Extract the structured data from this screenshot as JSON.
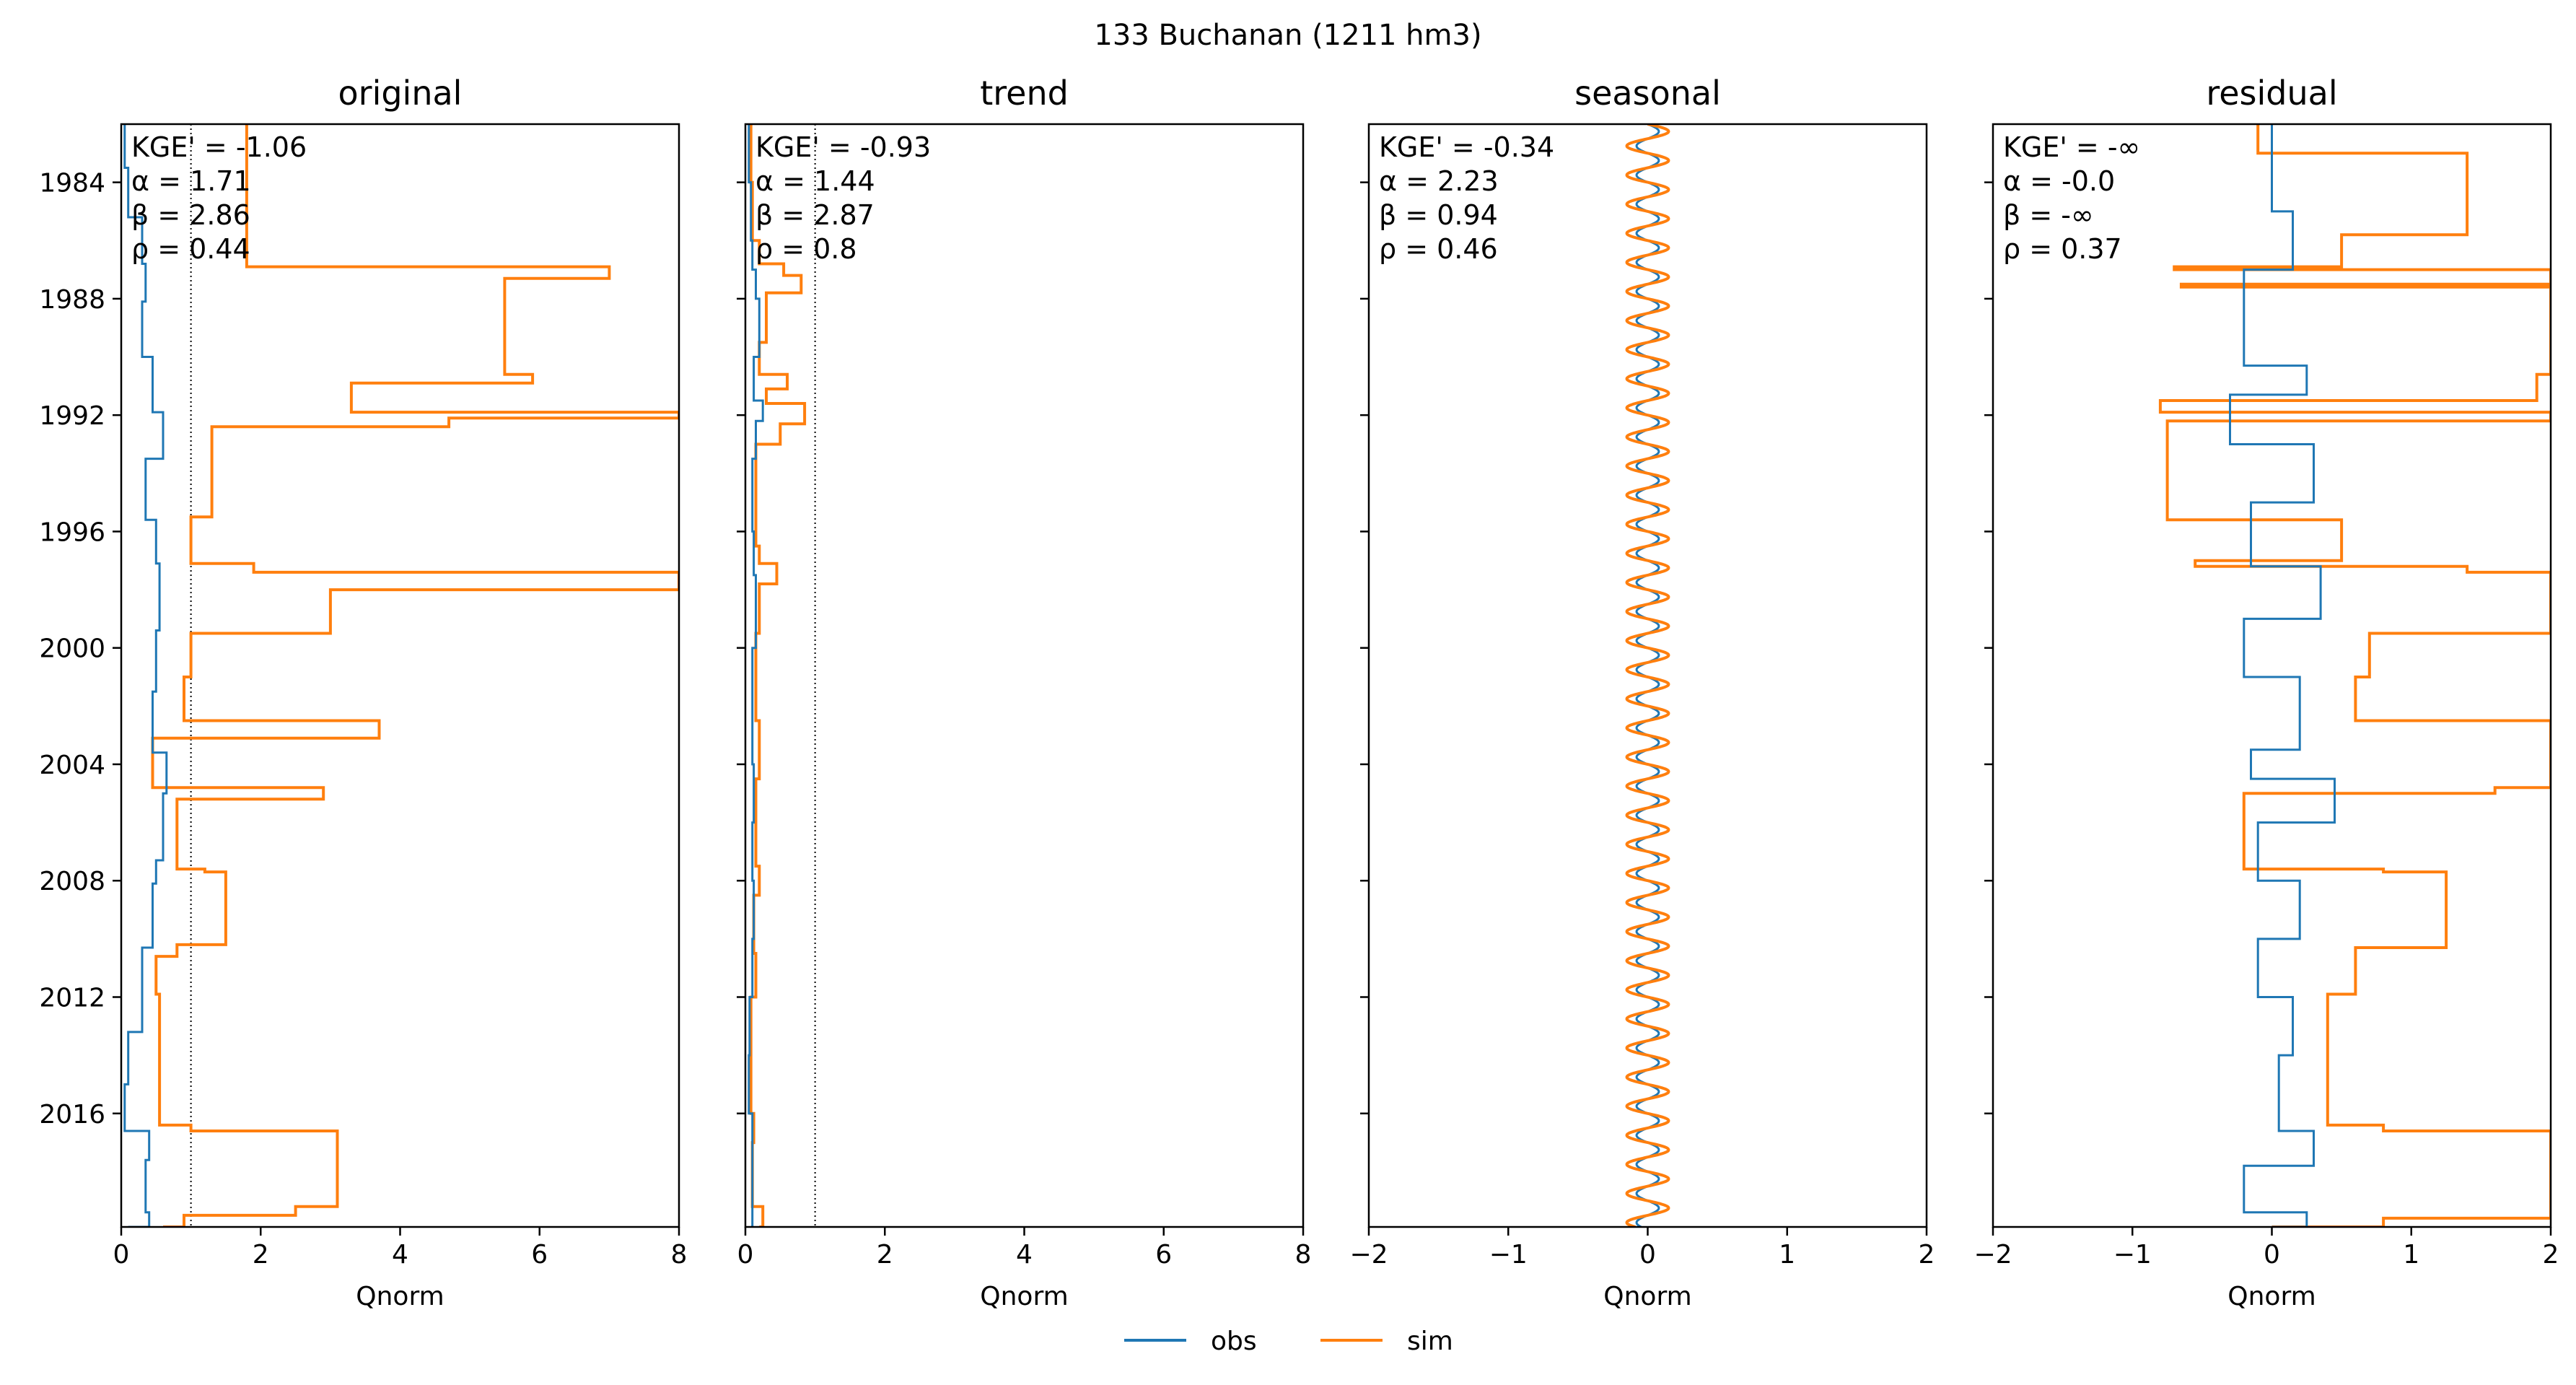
{
  "figure": {
    "suptitle": "133  Buchanan (1211 hm3)"
  },
  "colors": {
    "obs": "#1f77b4",
    "sim": "#ff7f0e",
    "axis": "#000000"
  },
  "chart_data": {
    "type": "line",
    "orientation": "horizontal (x = Qnorm, y = date)",
    "legend": {
      "placement": "bottom-center",
      "entries": [
        "obs",
        "sim"
      ]
    },
    "ylim": [
      1982.0,
      2019.9
    ],
    "yticks": [
      "1984",
      "1988",
      "1992",
      "1996",
      "2000",
      "2004",
      "2008",
      "2012",
      "2016"
    ],
    "panels": [
      {
        "title": "original",
        "xlabel": "Qnorm",
        "xlim": [
          0,
          8
        ],
        "xticks": [
          "0",
          "2",
          "4",
          "6",
          "8"
        ],
        "reference_line_x": 1,
        "show_ytick_labels": true,
        "metrics": [
          "KGE' = -1.06",
          "α = 1.71",
          "β = 2.86",
          "ρ = 0.44"
        ],
        "series": [
          {
            "name": "obs",
            "points": [
              [
                1982.0,
                0.05
              ],
              [
                1983.5,
                0.1
              ],
              [
                1985.2,
                0.3
              ],
              [
                1986.8,
                0.35
              ],
              [
                1988.1,
                0.3
              ],
              [
                1990.0,
                0.45
              ],
              [
                1991.9,
                0.6
              ],
              [
                1993.5,
                0.35
              ],
              [
                1995.6,
                0.5
              ],
              [
                1997.1,
                0.55
              ],
              [
                1999.4,
                0.5
              ],
              [
                2001.5,
                0.45
              ],
              [
                2003.6,
                0.65
              ],
              [
                2005.0,
                0.6
              ],
              [
                2007.3,
                0.5
              ],
              [
                2008.1,
                0.45
              ],
              [
                2010.3,
                0.3
              ],
              [
                2011.7,
                0.3
              ],
              [
                2013.2,
                0.1
              ],
              [
                2015.0,
                0.05
              ],
              [
                2016.6,
                0.4
              ],
              [
                2017.6,
                0.35
              ],
              [
                2019.4,
                0.4
              ],
              [
                2019.9,
                0.1
              ]
            ]
          },
          {
            "name": "sim",
            "points": [
              [
                1982.0,
                1.8
              ],
              [
                1986.9,
                7.0
              ],
              [
                1987.3,
                5.5
              ],
              [
                1990.6,
                5.9
              ],
              [
                1990.9,
                3.3
              ],
              [
                1991.9,
                8.0
              ],
              [
                1992.1,
                4.7
              ],
              [
                1992.4,
                1.3
              ],
              [
                1995.5,
                1.0
              ],
              [
                1997.1,
                1.9
              ],
              [
                1997.4,
                8.0
              ],
              [
                1998.0,
                3.0
              ],
              [
                1999.5,
                1.0
              ],
              [
                2001.0,
                0.9
              ],
              [
                2002.5,
                3.7
              ],
              [
                2003.1,
                0.45
              ],
              [
                2004.8,
                2.9
              ],
              [
                2005.2,
                0.8
              ],
              [
                2007.6,
                1.2
              ],
              [
                2007.7,
                1.5
              ],
              [
                2010.2,
                0.8
              ],
              [
                2010.6,
                0.5
              ],
              [
                2011.9,
                0.55
              ],
              [
                2016.4,
                1.0
              ],
              [
                2016.6,
                3.1
              ],
              [
                2019.2,
                2.5
              ],
              [
                2019.5,
                0.9
              ],
              [
                2019.9,
                0.6
              ]
            ]
          }
        ]
      },
      {
        "title": "trend",
        "xlabel": "Qnorm",
        "xlim": [
          0,
          8
        ],
        "xticks": [
          "0",
          "2",
          "4",
          "6",
          "8"
        ],
        "reference_line_x": 1,
        "show_ytick_labels": false,
        "metrics": [
          "KGE' = -0.93",
          "α = 1.44",
          "β = 2.87",
          "ρ = 0.8"
        ],
        "series": [
          {
            "name": "obs",
            "points": [
              [
                1982.0,
                0.05
              ],
              [
                1984.0,
                0.08
              ],
              [
                1986.0,
                0.1
              ],
              [
                1987.0,
                0.15
              ],
              [
                1988.0,
                0.2
              ],
              [
                1990.0,
                0.12
              ],
              [
                1991.5,
                0.25
              ],
              [
                1992.2,
                0.15
              ],
              [
                1993.5,
                0.1
              ],
              [
                1996.0,
                0.12
              ],
              [
                1997.5,
                0.15
              ],
              [
                2000.0,
                0.1
              ],
              [
                2004.0,
                0.12
              ],
              [
                2006.0,
                0.1
              ],
              [
                2008.0,
                0.12
              ],
              [
                2010.0,
                0.1
              ],
              [
                2012.0,
                0.06
              ],
              [
                2014.0,
                0.05
              ],
              [
                2016.0,
                0.1
              ],
              [
                2018.0,
                0.1
              ],
              [
                2019.9,
                0.08
              ]
            ]
          },
          {
            "name": "sim",
            "points": [
              [
                1982.0,
                0.08
              ],
              [
                1984.0,
                0.1
              ],
              [
                1986.0,
                0.2
              ],
              [
                1986.8,
                0.55
              ],
              [
                1987.2,
                0.8
              ],
              [
                1987.8,
                0.3
              ],
              [
                1989.5,
                0.2
              ],
              [
                1990.6,
                0.6
              ],
              [
                1991.1,
                0.3
              ],
              [
                1991.6,
                0.85
              ],
              [
                1992.3,
                0.5
              ],
              [
                1993.0,
                0.15
              ],
              [
                1996.5,
                0.2
              ],
              [
                1997.1,
                0.45
              ],
              [
                1997.8,
                0.2
              ],
              [
                1999.5,
                0.15
              ],
              [
                2002.5,
                0.2
              ],
              [
                2004.5,
                0.15
              ],
              [
                2007.5,
                0.2
              ],
              [
                2008.5,
                0.12
              ],
              [
                2010.5,
                0.15
              ],
              [
                2012.0,
                0.08
              ],
              [
                2016.0,
                0.12
              ],
              [
                2017.0,
                0.1
              ],
              [
                2019.2,
                0.25
              ],
              [
                2019.9,
                0.2
              ]
            ]
          }
        ]
      },
      {
        "title": "seasonal",
        "xlabel": "Qnorm",
        "xlim": [
          -2,
          2
        ],
        "xticks": [
          "−2",
          "−1",
          "0",
          "1",
          "2"
        ],
        "reference_line_x": null,
        "show_ytick_labels": false,
        "metrics": [
          "KGE' = -0.34",
          "α = 2.23",
          "β = 0.94",
          "ρ = 0.46"
        ],
        "seasonal_amplitude": {
          "obs": 0.08,
          "sim": 0.15
        }
      },
      {
        "title": "residual",
        "xlabel": "Qnorm",
        "xlim": [
          -2,
          2
        ],
        "xticks": [
          "−2",
          "−1",
          "0",
          "1",
          "2"
        ],
        "reference_line_x": null,
        "show_ytick_labels": false,
        "metrics": [
          "KGE' = -∞",
          "α = -0.0",
          "β = -∞",
          "ρ = 0.37"
        ],
        "series": [
          {
            "name": "obs",
            "points": [
              [
                1982.0,
                0.0
              ],
              [
                1985.0,
                0.15
              ],
              [
                1987.0,
                -0.2
              ],
              [
                1990.3,
                0.25
              ],
              [
                1991.3,
                -0.3
              ],
              [
                1993.0,
                0.3
              ],
              [
                1995.0,
                -0.15
              ],
              [
                1997.2,
                0.35
              ],
              [
                1999.0,
                -0.2
              ],
              [
                2001.0,
                0.2
              ],
              [
                2003.5,
                -0.15
              ],
              [
                2004.5,
                0.45
              ],
              [
                2006.0,
                -0.1
              ],
              [
                2008.0,
                0.2
              ],
              [
                2010.0,
                -0.1
              ],
              [
                2012.0,
                0.15
              ],
              [
                2014.0,
                0.05
              ],
              [
                2016.6,
                0.3
              ],
              [
                2017.8,
                -0.2
              ],
              [
                2019.4,
                0.25
              ],
              [
                2019.9,
                0.0
              ]
            ]
          },
          {
            "name": "sim",
            "points": [
              [
                1982.0,
                -0.1
              ],
              [
                1983.0,
                1.4
              ],
              [
                1985.8,
                0.5
              ],
              [
                1986.9,
                -0.7
              ],
              [
                1987.0,
                2.0
              ],
              [
                1987.5,
                -0.65
              ],
              [
                1987.6,
                2.0
              ],
              [
                1990.6,
                1.9
              ],
              [
                1991.5,
                -0.8
              ],
              [
                1991.9,
                2.0
              ],
              [
                1992.2,
                -0.75
              ],
              [
                1995.6,
                0.5
              ],
              [
                1997.0,
                -0.55
              ],
              [
                1997.2,
                1.4
              ],
              [
                1997.4,
                2.0
              ],
              [
                1999.5,
                0.7
              ],
              [
                2001.0,
                0.6
              ],
              [
                2002.5,
                2.0
              ],
              [
                2004.8,
                1.6
              ],
              [
                2005.0,
                -0.2
              ],
              [
                2007.6,
                0.8
              ],
              [
                2007.7,
                1.25
              ],
              [
                2010.3,
                0.6
              ],
              [
                2011.9,
                0.4
              ],
              [
                2016.4,
                0.8
              ],
              [
                2016.6,
                2.0
              ],
              [
                2019.2,
                2.0
              ],
              [
                2019.6,
                0.8
              ],
              [
                2019.9,
                0.0
              ]
            ]
          }
        ]
      }
    ]
  }
}
